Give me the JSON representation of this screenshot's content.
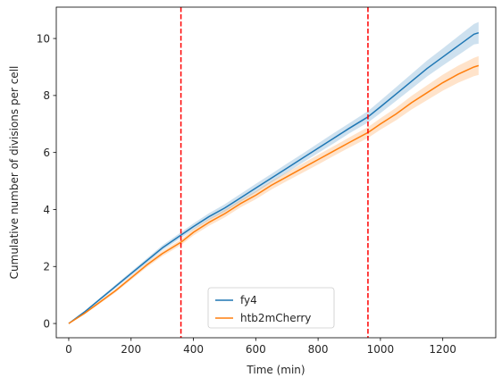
{
  "chart_data": {
    "type": "line",
    "xlabel": "Time (min)",
    "ylabel": "Cumulative number of divisions per cell",
    "xlim": [
      -40,
      1370
    ],
    "ylim": [
      -0.5,
      11.1
    ],
    "xticks": [
      0,
      200,
      400,
      600,
      800,
      1000,
      1200
    ],
    "yticks": [
      0,
      2,
      4,
      6,
      8,
      10
    ],
    "grid": false,
    "legend_position": "bottom-center",
    "vlines": [
      {
        "x": 360,
        "color": "#ff0000",
        "style": "dashed"
      },
      {
        "x": 960,
        "color": "#ff0000",
        "style": "dashed"
      }
    ],
    "series": [
      {
        "name": "fy4",
        "color": "#1f77b4",
        "x": [
          0,
          50,
          100,
          150,
          200,
          250,
          300,
          360,
          400,
          450,
          500,
          550,
          600,
          650,
          700,
          750,
          800,
          850,
          900,
          960,
          1000,
          1050,
          1100,
          1150,
          1200,
          1250,
          1300,
          1315
        ],
        "y": [
          0,
          0.4,
          0.85,
          1.3,
          1.75,
          2.2,
          2.65,
          3.1,
          3.4,
          3.75,
          4.05,
          4.4,
          4.75,
          5.1,
          5.45,
          5.8,
          6.15,
          6.5,
          6.85,
          7.25,
          7.6,
          8.05,
          8.5,
          8.95,
          9.35,
          9.75,
          10.15,
          10.2
        ],
        "ci_halfwidth": [
          0,
          0.03,
          0.05,
          0.06,
          0.07,
          0.08,
          0.09,
          0.1,
          0.11,
          0.12,
          0.13,
          0.14,
          0.15,
          0.15,
          0.16,
          0.16,
          0.17,
          0.18,
          0.18,
          0.2,
          0.22,
          0.24,
          0.26,
          0.28,
          0.3,
          0.33,
          0.36,
          0.38
        ]
      },
      {
        "name": "htb2mCherry",
        "color": "#ff7f0e",
        "x": [
          0,
          50,
          100,
          150,
          200,
          250,
          300,
          360,
          400,
          450,
          500,
          550,
          600,
          650,
          700,
          750,
          800,
          850,
          900,
          960,
          1000,
          1050,
          1100,
          1150,
          1200,
          1250,
          1300,
          1315
        ],
        "y": [
          0,
          0.35,
          0.75,
          1.15,
          1.6,
          2.05,
          2.45,
          2.85,
          3.2,
          3.55,
          3.85,
          4.2,
          4.5,
          4.85,
          5.15,
          5.45,
          5.75,
          6.05,
          6.35,
          6.7,
          7.0,
          7.35,
          7.75,
          8.1,
          8.45,
          8.75,
          9.0,
          9.05
        ],
        "ci_halfwidth": [
          0,
          0.03,
          0.05,
          0.06,
          0.07,
          0.08,
          0.09,
          0.1,
          0.11,
          0.12,
          0.13,
          0.13,
          0.14,
          0.15,
          0.15,
          0.16,
          0.17,
          0.17,
          0.18,
          0.19,
          0.2,
          0.22,
          0.24,
          0.26,
          0.28,
          0.3,
          0.32,
          0.33
        ]
      }
    ]
  }
}
